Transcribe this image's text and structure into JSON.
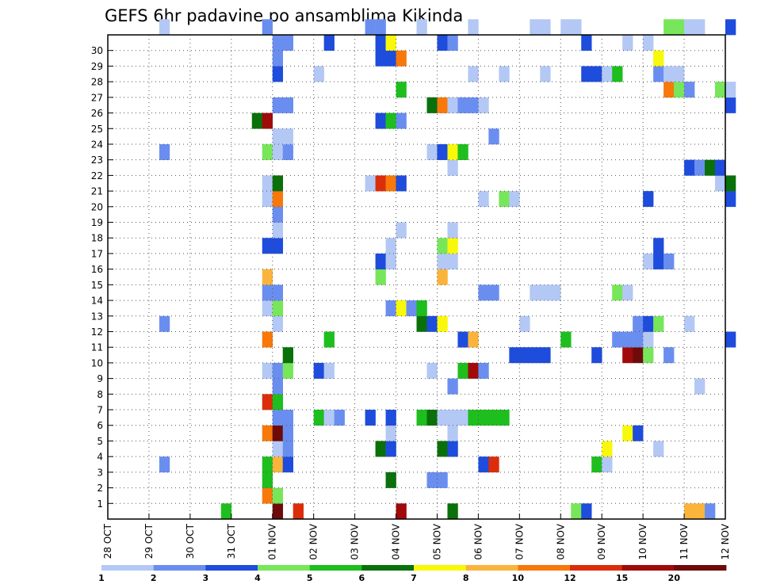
{
  "title": "GEFS 6hr padavine po ansamblima Kikinda",
  "chart_data": {
    "type": "heatmap",
    "title": "GEFS 6hr padavine po ansamblima Kikinda",
    "x_tick_labels": [
      "28 OCT",
      "29 OCT",
      "30 OCT",
      "31 OCT",
      "01 NOV",
      "02 NOV",
      "03 NOV",
      "04 NOV",
      "05 NOV",
      "06 NOV",
      "07 NOV",
      "08 NOV",
      "09 NOV",
      "10 NOV",
      "11 NOV",
      "12 NOV"
    ],
    "y_tick_labels": [
      "1",
      "2",
      "3",
      "4",
      "5",
      "6",
      "7",
      "8",
      "9",
      "10",
      "11",
      "12",
      "13",
      "14",
      "15",
      "16",
      "17",
      "18",
      "19",
      "20",
      "21",
      "22",
      "23",
      "24",
      "25",
      "26",
      "27",
      "28",
      "29",
      "30"
    ],
    "x_unit": "6-hour step (0 = 28 OCT 00Z)",
    "y_range": [
      0,
      30
    ],
    "grid": true,
    "colorbar": {
      "labels": [
        "1",
        "2",
        "3",
        "4",
        "5",
        "6",
        "7",
        "8",
        "10",
        "12",
        "15",
        "20"
      ],
      "colors": [
        "#b4c8f5",
        "#6a8ef0",
        "#1e4cdc",
        "#78e65a",
        "#1ebe1e",
        "#0a700a",
        "#f8f80a",
        "#fab43c",
        "#f8780a",
        "#dc2d0a",
        "#a00a0a",
        "#6e0a0a"
      ]
    },
    "cells": [
      [
        11,
        0,
        4
      ],
      [
        16,
        0,
        11
      ],
      [
        18,
        0,
        9
      ],
      [
        28,
        0,
        10
      ],
      [
        33,
        0,
        5
      ],
      [
        45,
        0,
        3
      ],
      [
        46,
        0,
        2
      ],
      [
        56,
        0,
        7
      ],
      [
        57,
        0,
        7
      ],
      [
        58,
        0,
        1
      ],
      [
        15,
        1,
        8
      ],
      [
        16,
        1,
        3
      ],
      [
        15,
        2,
        4
      ],
      [
        27,
        2,
        5
      ],
      [
        31,
        2,
        1
      ],
      [
        32,
        2,
        1
      ],
      [
        5,
        3,
        1
      ],
      [
        15,
        3,
        4
      ],
      [
        16,
        3,
        7
      ],
      [
        17,
        3,
        2
      ],
      [
        36,
        3,
        2
      ],
      [
        37,
        3,
        9
      ],
      [
        47,
        3,
        4
      ],
      [
        48,
        3,
        0
      ],
      [
        16,
        4,
        0
      ],
      [
        17,
        4,
        1
      ],
      [
        26,
        4,
        5
      ],
      [
        27,
        4,
        2
      ],
      [
        32,
        4,
        5
      ],
      [
        33,
        4,
        2
      ],
      [
        48,
        4,
        6
      ],
      [
        53,
        4,
        0
      ],
      [
        15,
        5,
        8
      ],
      [
        16,
        5,
        11
      ],
      [
        17,
        5,
        1
      ],
      [
        27,
        5,
        0
      ],
      [
        33,
        5,
        0
      ],
      [
        50,
        5,
        6
      ],
      [
        51,
        5,
        2
      ],
      [
        16,
        6,
        1
      ],
      [
        17,
        6,
        1
      ],
      [
        20,
        6,
        4
      ],
      [
        21,
        6,
        0
      ],
      [
        22,
        6,
        1
      ],
      [
        25,
        6,
        2
      ],
      [
        27,
        6,
        2
      ],
      [
        30,
        6,
        4
      ],
      [
        31,
        6,
        5
      ],
      [
        32,
        6,
        0
      ],
      [
        33,
        6,
        0
      ],
      [
        34,
        6,
        0
      ],
      [
        35,
        6,
        4
      ],
      [
        36,
        6,
        4
      ],
      [
        37,
        6,
        4
      ],
      [
        38,
        6,
        4
      ],
      [
        15,
        7,
        9
      ],
      [
        16,
        7,
        4
      ],
      [
        16,
        8,
        1
      ],
      [
        33,
        8,
        1
      ],
      [
        57,
        8,
        0
      ],
      [
        15,
        9,
        0
      ],
      [
        16,
        9,
        1
      ],
      [
        17,
        9,
        3
      ],
      [
        20,
        9,
        2
      ],
      [
        21,
        9,
        0
      ],
      [
        31,
        9,
        0
      ],
      [
        34,
        9,
        4
      ],
      [
        35,
        9,
        10
      ],
      [
        36,
        9,
        1
      ],
      [
        17,
        10,
        5
      ],
      [
        39,
        10,
        2
      ],
      [
        40,
        10,
        2
      ],
      [
        41,
        10,
        2
      ],
      [
        42,
        10,
        2
      ],
      [
        47,
        10,
        2
      ],
      [
        50,
        10,
        10
      ],
      [
        51,
        10,
        11
      ],
      [
        52,
        10,
        3
      ],
      [
        54,
        10,
        1
      ],
      [
        15,
        11,
        8
      ],
      [
        21,
        11,
        4
      ],
      [
        34,
        11,
        2
      ],
      [
        35,
        11,
        7
      ],
      [
        44,
        11,
        4
      ],
      [
        49,
        11,
        1
      ],
      [
        50,
        11,
        1
      ],
      [
        51,
        11,
        1
      ],
      [
        52,
        11,
        0
      ],
      [
        60,
        11,
        2
      ],
      [
        5,
        12,
        1
      ],
      [
        16,
        12,
        0
      ],
      [
        30,
        12,
        5
      ],
      [
        31,
        12,
        2
      ],
      [
        32,
        12,
        6
      ],
      [
        40,
        12,
        0
      ],
      [
        51,
        12,
        1
      ],
      [
        52,
        12,
        2
      ],
      [
        53,
        12,
        3
      ],
      [
        56,
        12,
        0
      ],
      [
        15,
        13,
        0
      ],
      [
        16,
        13,
        3
      ],
      [
        27,
        13,
        1
      ],
      [
        28,
        13,
        6
      ],
      [
        29,
        13,
        1
      ],
      [
        30,
        13,
        4
      ],
      [
        15,
        14,
        1
      ],
      [
        16,
        14,
        1
      ],
      [
        36,
        14,
        1
      ],
      [
        37,
        14,
        1
      ],
      [
        41,
        14,
        0
      ],
      [
        42,
        14,
        0
      ],
      [
        43,
        14,
        0
      ],
      [
        49,
        14,
        3
      ],
      [
        50,
        14,
        0
      ],
      [
        15,
        15,
        7
      ],
      [
        26,
        15,
        3
      ],
      [
        32,
        15,
        7
      ],
      [
        26,
        16,
        2
      ],
      [
        27,
        16,
        0
      ],
      [
        32,
        16,
        0
      ],
      [
        33,
        16,
        0
      ],
      [
        52,
        16,
        0
      ],
      [
        53,
        16,
        2
      ],
      [
        54,
        16,
        1
      ],
      [
        15,
        17,
        2
      ],
      [
        16,
        17,
        2
      ],
      [
        27,
        17,
        0
      ],
      [
        32,
        17,
        3
      ],
      [
        33,
        17,
        6
      ],
      [
        53,
        17,
        2
      ],
      [
        16,
        18,
        0
      ],
      [
        28,
        18,
        0
      ],
      [
        33,
        18,
        0
      ],
      [
        16,
        19,
        1
      ],
      [
        15,
        20,
        0
      ],
      [
        16,
        20,
        8
      ],
      [
        36,
        20,
        0
      ],
      [
        38,
        20,
        3
      ],
      [
        39,
        20,
        0
      ],
      [
        52,
        20,
        2
      ],
      [
        60,
        20,
        2
      ],
      [
        15,
        21,
        0
      ],
      [
        16,
        21,
        5
      ],
      [
        25,
        21,
        0
      ],
      [
        26,
        21,
        9
      ],
      [
        27,
        21,
        8
      ],
      [
        28,
        21,
        2
      ],
      [
        59,
        21,
        0
      ],
      [
        60,
        21,
        5
      ],
      [
        33,
        22,
        0
      ],
      [
        56,
        22,
        2
      ],
      [
        57,
        22,
        1
      ],
      [
        58,
        22,
        5
      ],
      [
        59,
        22,
        2
      ],
      [
        5,
        23,
        1
      ],
      [
        15,
        23,
        3
      ],
      [
        16,
        23,
        0
      ],
      [
        17,
        23,
        1
      ],
      [
        31,
        23,
        0
      ],
      [
        32,
        23,
        2
      ],
      [
        33,
        23,
        6
      ],
      [
        34,
        23,
        4
      ],
      [
        16,
        24,
        0
      ],
      [
        17,
        24,
        0
      ],
      [
        37,
        24,
        1
      ],
      [
        14,
        25,
        5
      ],
      [
        15,
        25,
        10
      ],
      [
        26,
        25,
        2
      ],
      [
        27,
        25,
        4
      ],
      [
        28,
        25,
        1
      ],
      [
        16,
        26,
        1
      ],
      [
        17,
        26,
        1
      ],
      [
        31,
        26,
        5
      ],
      [
        32,
        26,
        8
      ],
      [
        33,
        26,
        0
      ],
      [
        34,
        26,
        1
      ],
      [
        35,
        26,
        1
      ],
      [
        36,
        26,
        0
      ],
      [
        60,
        26,
        2
      ],
      [
        28,
        27,
        4
      ],
      [
        54,
        27,
        8
      ],
      [
        55,
        27,
        3
      ],
      [
        56,
        27,
        1
      ],
      [
        59,
        27,
        3
      ],
      [
        60,
        27,
        0
      ],
      [
        16,
        28,
        2
      ],
      [
        20,
        28,
        0
      ],
      [
        35,
        28,
        0
      ],
      [
        38,
        28,
        0
      ],
      [
        42,
        28,
        0
      ],
      [
        46,
        28,
        2
      ],
      [
        47,
        28,
        2
      ],
      [
        48,
        28,
        0
      ],
      [
        49,
        28,
        4
      ],
      [
        53,
        28,
        1
      ],
      [
        54,
        28,
        0
      ],
      [
        55,
        28,
        0
      ],
      [
        16,
        29,
        1
      ],
      [
        26,
        29,
        2
      ],
      [
        27,
        29,
        2
      ],
      [
        28,
        29,
        8
      ],
      [
        53,
        29,
        6
      ],
      [
        16,
        30,
        1
      ],
      [
        17,
        30,
        1
      ],
      [
        21,
        30,
        2
      ],
      [
        26,
        30,
        2
      ],
      [
        27,
        30,
        6
      ],
      [
        32,
        30,
        2
      ],
      [
        33,
        30,
        1
      ],
      [
        46,
        30,
        2
      ],
      [
        50,
        30,
        0
      ],
      [
        52,
        30,
        0
      ],
      [
        5,
        31,
        0
      ],
      [
        15,
        31,
        1
      ],
      [
        25,
        31,
        1
      ],
      [
        26,
        31,
        1
      ],
      [
        30,
        31,
        0
      ],
      [
        35,
        31,
        0
      ],
      [
        41,
        31,
        0
      ],
      [
        42,
        31,
        0
      ],
      [
        44,
        31,
        0
      ],
      [
        45,
        31,
        0
      ],
      [
        54,
        31,
        3
      ],
      [
        55,
        31,
        3
      ],
      [
        56,
        31,
        0
      ],
      [
        57,
        31,
        0
      ],
      [
        60,
        31,
        2
      ]
    ]
  }
}
